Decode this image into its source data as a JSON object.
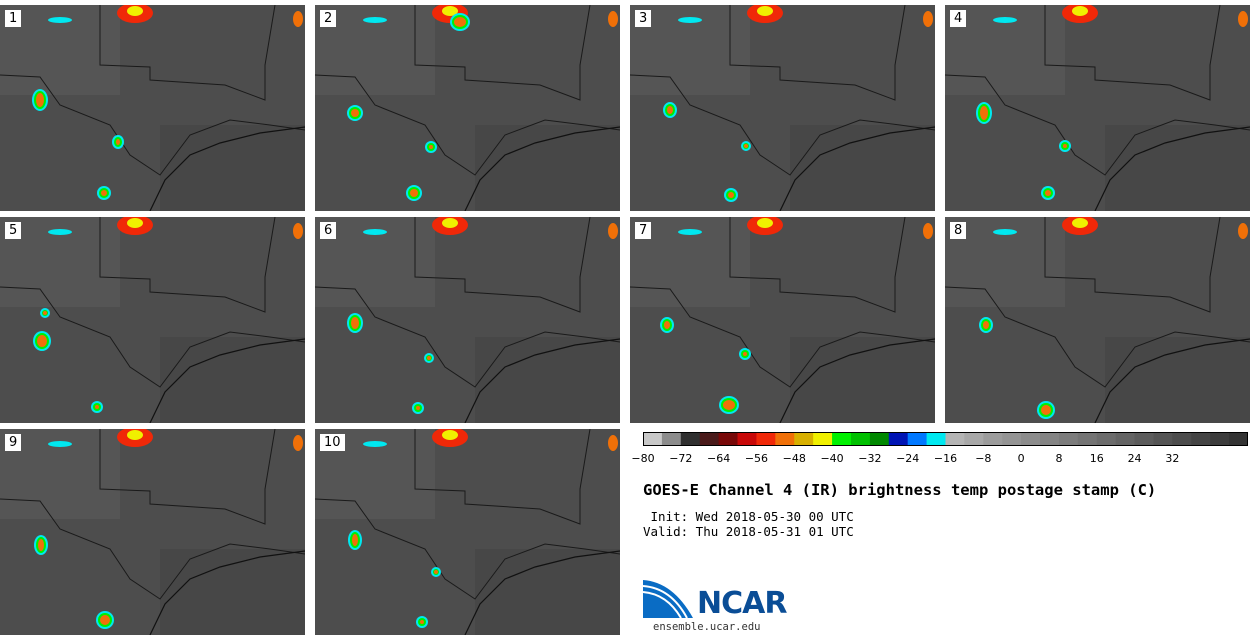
{
  "panels": [
    {
      "label": "1"
    },
    {
      "label": "2"
    },
    {
      "label": "3"
    },
    {
      "label": "4"
    },
    {
      "label": "5"
    },
    {
      "label": "6"
    },
    {
      "label": "7"
    },
    {
      "label": "8"
    },
    {
      "label": "9"
    },
    {
      "label": "10"
    }
  ],
  "colorbar": {
    "colors": [
      "#c8c8c8",
      "#8c8c8c",
      "#303030",
      "#4a1a1a",
      "#780808",
      "#c80808",
      "#f02808",
      "#f07008",
      "#d8b000",
      "#f0f000",
      "#00f000",
      "#00c000",
      "#008800",
      "#0014b4",
      "#0078ff",
      "#00e8f0",
      "#b4b4b4",
      "#a8a8a8",
      "#9c9c9c",
      "#949494",
      "#8c8c8c",
      "#848484",
      "#7c7c7c",
      "#747474",
      "#6c6c6c",
      "#646464",
      "#5c5c5c",
      "#545454",
      "#4c4c4c",
      "#444444",
      "#3c3c3c",
      "#343434"
    ],
    "ticks": [
      "−80",
      "−72",
      "−64",
      "−56",
      "−48",
      "−40",
      "−32",
      "−24",
      "−16",
      "−8",
      "0",
      "8",
      "16",
      "24",
      "32"
    ]
  },
  "title": "GOES-E Channel 4 (IR) brightness temp postage stamp (C)",
  "init_line": " Init: Wed 2018-05-30 00 UTC",
  "valid_line": "Valid: Thu 2018-05-31 01 UTC",
  "logo": {
    "text": "NCAR",
    "url_text": "ensemble.ucar.edu"
  }
}
